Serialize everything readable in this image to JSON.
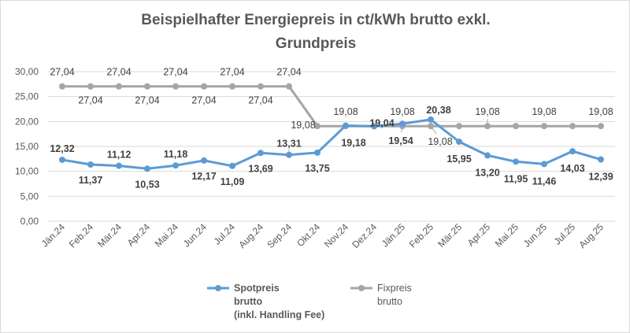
{
  "chart_data": {
    "type": "line",
    "title": "Beispielhafter Energiepreis in ct/kWh brutto exkl. Grundpreis",
    "title_lines": [
      "Beispielhafter Energiepreis in ct/kWh brutto exkl.",
      "Grundpreis"
    ],
    "categories": [
      "Jän.24",
      "Feb.24",
      "Mär.24",
      "Apr.24",
      "Mai.24",
      "Jun.24",
      "Jul.24",
      "Aug.24",
      "Sep.24",
      "Okt.24",
      "Nov.24",
      "Dez.24",
      "Jän.25",
      "Feb.25",
      "Mär.25",
      "Apr.25",
      "Mai.25",
      "Jun.25",
      "Jul.25",
      "Aug.25"
    ],
    "ylim": [
      0,
      30
    ],
    "yticks": [
      0,
      5,
      10,
      15,
      20,
      25,
      30
    ],
    "ytick_labels": [
      "0,00",
      "5,00",
      "10,00",
      "15,00",
      "20,00",
      "25,00",
      "30,00"
    ],
    "grid": true,
    "legend_position": "bottom",
    "series": [
      {
        "name": "Spotpreis brutto (inkl. Handling Fee)",
        "legend_lines": [
          "Spotpreis",
          "brutto",
          "(inkl. Handling Fee)"
        ],
        "color": "#5b9bd5",
        "values": [
          12.32,
          11.37,
          11.12,
          10.53,
          11.18,
          12.17,
          11.09,
          13.69,
          13.31,
          13.75,
          19.18,
          19.04,
          19.54,
          20.38,
          15.95,
          13.2,
          11.95,
          11.46,
          14.03,
          12.39
        ],
        "labels": [
          "12,32",
          "11,37",
          "11,12",
          "10,53",
          "11,18",
          "12,17",
          "11,09",
          "13,69",
          "13,31",
          "13,75",
          "19,18",
          "19,04",
          "19,54",
          "20,38",
          "15,95",
          "13,20",
          "11,95",
          "11,46",
          "14,03",
          "12,39"
        ]
      },
      {
        "name": "Fixpreis brutto",
        "legend_lines": [
          "Fixpreis",
          "brutto"
        ],
        "color": "#a5a5a5",
        "values": [
          27.04,
          27.04,
          27.04,
          27.04,
          27.04,
          27.04,
          27.04,
          27.04,
          27.04,
          19.08,
          19.08,
          19.08,
          19.08,
          19.08,
          19.08,
          19.08,
          19.08,
          19.08,
          19.08,
          19.08
        ],
        "labels": [
          "27,04",
          "27,04",
          "27,04",
          "27,04",
          "27,04",
          "27,04",
          "27,04",
          "27,04",
          "27,04",
          "19,08",
          "19,08",
          "",
          "19,08",
          "19,08",
          "",
          "19,08",
          "",
          "19,08",
          "",
          "19,08"
        ]
      }
    ]
  }
}
